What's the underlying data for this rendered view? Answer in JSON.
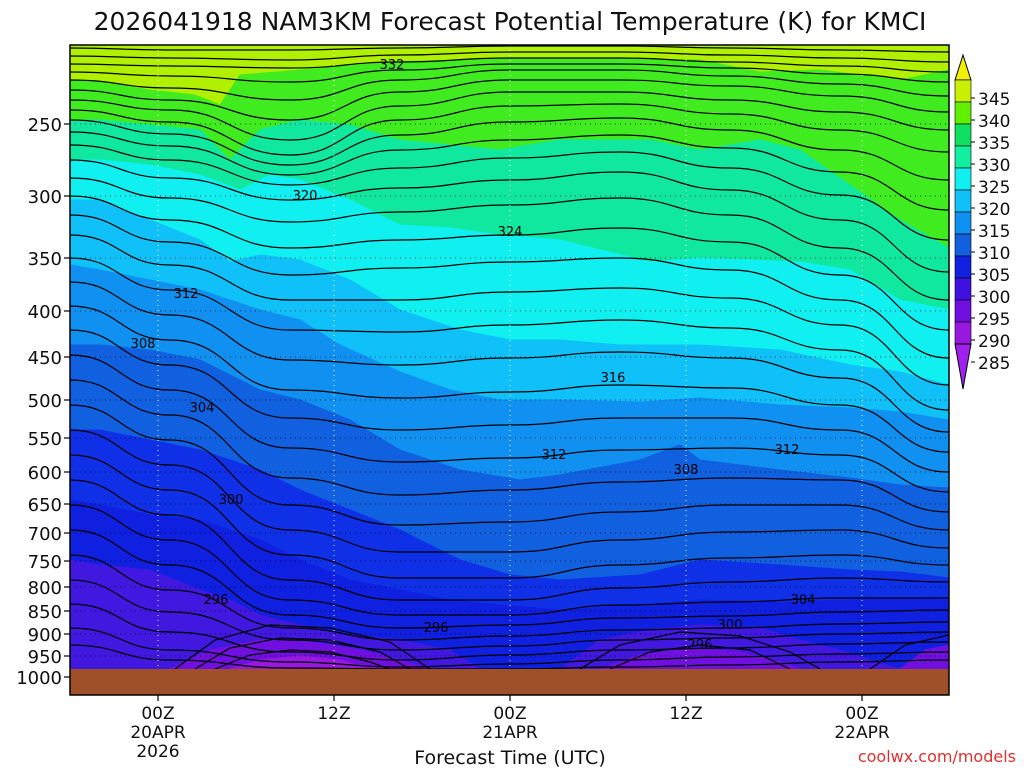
{
  "chart_data": {
    "type": "heatmap",
    "title": "2026041918 NAM3KM Forecast Potential Temperature (K) for KMCI",
    "xlabel": "Forecast Time (UTC)",
    "ylabel": "",
    "credit": "coolwx.com/models",
    "y_ticks": [
      "250",
      "300",
      "350",
      "400",
      "450",
      "500",
      "550",
      "600",
      "650",
      "700",
      "750",
      "800",
      "850",
      "900",
      "950",
      "1000"
    ],
    "x_ticks": [
      {
        "line1": "00Z",
        "line2": "20APR",
        "line3": "2026"
      },
      {
        "line1": "12Z",
        "line2": "",
        "line3": ""
      },
      {
        "line1": "00Z",
        "line2": "21APR",
        "line3": ""
      },
      {
        "line1": "12Z",
        "line2": "",
        "line3": ""
      },
      {
        "line1": "00Z",
        "line2": "22APR",
        "line3": ""
      }
    ],
    "colorbar": {
      "unit": "K",
      "levels": [
        "345",
        "340",
        "335",
        "330",
        "325",
        "320",
        "315",
        "310",
        "305",
        "300",
        "295",
        "290",
        "285"
      ],
      "colors": [
        "#f2f000",
        "#c8f000",
        "#60f000",
        "#10e060",
        "#10f0a0",
        "#10f0f0",
        "#10c0f8",
        "#1090f0",
        "#1060e0",
        "#1020e0",
        "#4010e0",
        "#7010e0",
        "#9818e0",
        "#a020f0"
      ]
    },
    "contour_labels": [
      "332",
      "320",
      "324",
      "312",
      "308",
      "316",
      "304",
      "312",
      "312",
      "308",
      "300",
      "304",
      "296",
      "296",
      "300",
      "296"
    ],
    "ground": {
      "color": "#a05028"
    }
  }
}
